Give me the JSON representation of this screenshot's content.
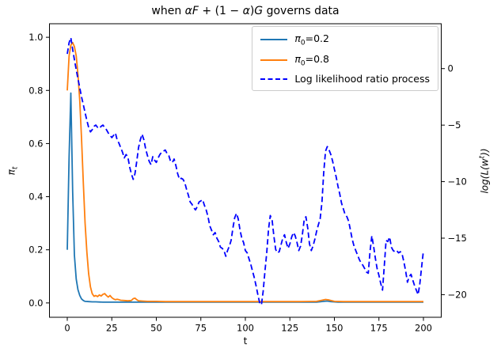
{
  "title_parts": [
    {
      "t": "when ",
      "i": 0
    },
    {
      "t": "αF",
      "i": 1
    },
    {
      "t": " + (1 − ",
      "i": 0
    },
    {
      "t": "α",
      "i": 1
    },
    {
      "t": ")",
      "i": 0
    },
    {
      "t": "G",
      "i": 1
    },
    {
      "t": " governs data",
      "i": 0
    }
  ],
  "axes": {
    "xlabel": "t",
    "ylabel_left": {
      "base": "π",
      "sub": "t"
    },
    "ylabel_right": {
      "pre": "log(L(w",
      "sup": "t",
      "post": "))"
    },
    "x_ticks": [
      "0",
      "25",
      "50",
      "75",
      "100",
      "125",
      "150",
      "175",
      "200"
    ],
    "y_ticks_left": [
      "0.0",
      "0.2",
      "0.4",
      "0.6",
      "0.8",
      "1.0"
    ],
    "y_ticks_right": [
      "0",
      "−5",
      "−10",
      "−15",
      "−20"
    ]
  },
  "legend": {
    "items": [
      {
        "math": "π",
        "sub": "0",
        "rest": "=0.2",
        "color": "#1f77b4",
        "dashed": false
      },
      {
        "math": "π",
        "sub": "0",
        "rest": "=0.8",
        "color": "#ff7f0e",
        "dashed": false
      },
      {
        "math": "",
        "sub": "",
        "rest": "Log likelihood ratio process",
        "color": "#0000ff",
        "dashed": true
      }
    ]
  },
  "chart_data": {
    "type": "line",
    "title": "when αF + (1 − α)G governs data",
    "xlabel": "t",
    "ylabel_left": "π_t",
    "ylabel_right": "log(L(w^t))",
    "xlim": [
      -10,
      210
    ],
    "ylim_left": [
      -0.054,
      1.051
    ],
    "ylim_right": [
      -22.0,
      3.97
    ],
    "x_tick_values": [
      0,
      25,
      50,
      75,
      100,
      125,
      150,
      175,
      200
    ],
    "y_tick_values_left": [
      0.0,
      0.2,
      0.4,
      0.6,
      0.8,
      1.0
    ],
    "y_tick_values_right": [
      0,
      -5,
      -10,
      -15,
      -20
    ],
    "grid": false,
    "legend_position": "upper right",
    "series": [
      {
        "id": "pi02",
        "name": "π0=0.2",
        "axis": "left",
        "color": "#1f77b4",
        "style": "solid",
        "points": [
          [
            0,
            0.2
          ],
          [
            1,
            0.55
          ],
          [
            2,
            0.79
          ],
          [
            3,
            0.42
          ],
          [
            4,
            0.18
          ],
          [
            5,
            0.09
          ],
          [
            6,
            0.05
          ],
          [
            7,
            0.028
          ],
          [
            8,
            0.015
          ],
          [
            9,
            0.009
          ],
          [
            10,
            0.006
          ],
          [
            12,
            0.005
          ],
          [
            14,
            0.004
          ],
          [
            16,
            0.004
          ],
          [
            20,
            0.003
          ],
          [
            25,
            0.003
          ],
          [
            30,
            0.003
          ],
          [
            40,
            0.003
          ],
          [
            50,
            0.003
          ],
          [
            60,
            0.003
          ],
          [
            80,
            0.003
          ],
          [
            100,
            0.003
          ],
          [
            120,
            0.003
          ],
          [
            140,
            0.003
          ],
          [
            144,
            0.006
          ],
          [
            146,
            0.007
          ],
          [
            148,
            0.005
          ],
          [
            152,
            0.003
          ],
          [
            160,
            0.003
          ],
          [
            180,
            0.003
          ],
          [
            200,
            0.003
          ]
        ]
      },
      {
        "id": "pi08",
        "name": "π0=0.8",
        "axis": "left",
        "color": "#ff7f0e",
        "style": "solid",
        "points": [
          [
            0,
            0.8
          ],
          [
            1,
            0.93
          ],
          [
            2,
            0.97
          ],
          [
            3,
            0.98
          ],
          [
            4,
            0.965
          ],
          [
            5,
            0.93
          ],
          [
            6,
            0.86
          ],
          [
            7,
            0.76
          ],
          [
            8,
            0.62
          ],
          [
            9,
            0.45
          ],
          [
            10,
            0.3
          ],
          [
            11,
            0.19
          ],
          [
            12,
            0.11
          ],
          [
            13,
            0.06
          ],
          [
            14,
            0.035
          ],
          [
            15,
            0.025
          ],
          [
            16,
            0.028
          ],
          [
            17,
            0.024
          ],
          [
            18,
            0.03
          ],
          [
            19,
            0.026
          ],
          [
            20,
            0.032
          ],
          [
            21,
            0.035
          ],
          [
            22,
            0.028
          ],
          [
            23,
            0.022
          ],
          [
            24,
            0.028
          ],
          [
            25,
            0.02
          ],
          [
            26,
            0.015
          ],
          [
            27,
            0.012
          ],
          [
            28,
            0.014
          ],
          [
            29,
            0.012
          ],
          [
            30,
            0.01
          ],
          [
            32,
            0.009
          ],
          [
            34,
            0.008
          ],
          [
            36,
            0.009
          ],
          [
            37,
            0.016
          ],
          [
            38,
            0.018
          ],
          [
            39,
            0.012
          ],
          [
            40,
            0.008
          ],
          [
            42,
            0.007
          ],
          [
            45,
            0.006
          ],
          [
            50,
            0.006
          ],
          [
            55,
            0.005
          ],
          [
            60,
            0.005
          ],
          [
            70,
            0.005
          ],
          [
            80,
            0.005
          ],
          [
            90,
            0.005
          ],
          [
            100,
            0.005
          ],
          [
            110,
            0.005
          ],
          [
            120,
            0.005
          ],
          [
            130,
            0.005
          ],
          [
            140,
            0.006
          ],
          [
            143,
            0.01
          ],
          [
            145,
            0.013
          ],
          [
            147,
            0.011
          ],
          [
            150,
            0.006
          ],
          [
            155,
            0.005
          ],
          [
            160,
            0.005
          ],
          [
            170,
            0.005
          ],
          [
            180,
            0.005
          ],
          [
            190,
            0.005
          ],
          [
            200,
            0.005
          ]
        ]
      },
      {
        "id": "llr",
        "name": "Log likelihood ratio process",
        "axis": "right",
        "color": "#0000ff",
        "style": "dashed",
        "points": [
          [
            0,
            1.3
          ],
          [
            1,
            2.3
          ],
          [
            2,
            2.74
          ],
          [
            3,
            1.7
          ],
          [
            4,
            0.8
          ],
          [
            5,
            -0.1
          ],
          [
            6,
            -0.9
          ],
          [
            7,
            -1.7
          ],
          [
            8,
            -2.5
          ],
          [
            9,
            -3.2
          ],
          [
            10,
            -3.9
          ],
          [
            11,
            -4.6
          ],
          [
            12,
            -5.2
          ],
          [
            13,
            -5.6
          ],
          [
            14,
            -5.4
          ],
          [
            15,
            -5.1
          ],
          [
            16,
            -5.0
          ],
          [
            17,
            -5.2
          ],
          [
            18,
            -5.3
          ],
          [
            19,
            -5.1
          ],
          [
            20,
            -5.0
          ],
          [
            21,
            -5.2
          ],
          [
            22,
            -5.4
          ],
          [
            23,
            -5.7
          ],
          [
            24,
            -5.9
          ],
          [
            25,
            -6.1
          ],
          [
            26,
            -5.9
          ],
          [
            27,
            -5.7
          ],
          [
            28,
            -6.3
          ],
          [
            29,
            -6.6
          ],
          [
            30,
            -7.0
          ],
          [
            31,
            -7.4
          ],
          [
            32,
            -7.9
          ],
          [
            33,
            -7.6
          ],
          [
            34,
            -7.8
          ],
          [
            35,
            -8.7
          ],
          [
            36,
            -9.3
          ],
          [
            37,
            -9.8
          ],
          [
            38,
            -9.3
          ],
          [
            39,
            -8.2
          ],
          [
            40,
            -7.0
          ],
          [
            41,
            -6.3
          ],
          [
            42,
            -5.8
          ],
          [
            43,
            -6.3
          ],
          [
            44,
            -7.1
          ],
          [
            45,
            -7.7
          ],
          [
            46,
            -8.2
          ],
          [
            47,
            -8.5
          ],
          [
            48,
            -7.8
          ],
          [
            49,
            -8.1
          ],
          [
            50,
            -8.3
          ],
          [
            51,
            -7.9
          ],
          [
            52,
            -7.6
          ],
          [
            53,
            -7.4
          ],
          [
            54,
            -7.3
          ],
          [
            55,
            -7.2
          ],
          [
            56,
            -7.5
          ],
          [
            57,
            -7.7
          ],
          [
            58,
            -8.2
          ],
          [
            59,
            -8.3
          ],
          [
            60,
            -8.0
          ],
          [
            61,
            -8.6
          ],
          [
            62,
            -9.3
          ],
          [
            63,
            -9.8
          ],
          [
            64,
            -9.7
          ],
          [
            65,
            -9.8
          ],
          [
            66,
            -10.1
          ],
          [
            67,
            -10.7
          ],
          [
            68,
            -11.2
          ],
          [
            69,
            -11.8
          ],
          [
            70,
            -12.0
          ],
          [
            71,
            -12.3
          ],
          [
            72,
            -12.5
          ],
          [
            73,
            -12.2
          ],
          [
            74,
            -11.8
          ],
          [
            75,
            -11.7
          ],
          [
            76,
            -11.6
          ],
          [
            77,
            -12.1
          ],
          [
            78,
            -12.5
          ],
          [
            79,
            -13.1
          ],
          [
            80,
            -13.9
          ],
          [
            81,
            -14.3
          ],
          [
            82,
            -14.7
          ],
          [
            83,
            -14.5
          ],
          [
            84,
            -15.0
          ],
          [
            85,
            -15.3
          ],
          [
            86,
            -15.8
          ],
          [
            87,
            -15.9
          ],
          [
            88,
            -16.1
          ],
          [
            89,
            -16.6
          ],
          [
            90,
            -16.1
          ],
          [
            91,
            -15.7
          ],
          [
            92,
            -15.2
          ],
          [
            93,
            -14.1
          ],
          [
            94,
            -13.2
          ],
          [
            95,
            -12.8
          ],
          [
            96,
            -13.3
          ],
          [
            97,
            -14.3
          ],
          [
            98,
            -15.0
          ],
          [
            99,
            -15.4
          ],
          [
            100,
            -16.1
          ],
          [
            101,
            -16.3
          ],
          [
            102,
            -16.8
          ],
          [
            103,
            -17.3
          ],
          [
            104,
            -17.9
          ],
          [
            105,
            -18.5
          ],
          [
            106,
            -19.2
          ],
          [
            107,
            -20.0
          ],
          [
            108,
            -20.7
          ],
          [
            109,
            -20.9
          ],
          [
            110,
            -19.7
          ],
          [
            111,
            -17.9
          ],
          [
            112,
            -16.3
          ],
          [
            113,
            -14.2
          ],
          [
            114,
            -13.0
          ],
          [
            115,
            -13.4
          ],
          [
            116,
            -14.8
          ],
          [
            117,
            -16.0
          ],
          [
            118,
            -16.3
          ],
          [
            119,
            -16.2
          ],
          [
            120,
            -15.6
          ],
          [
            121,
            -15.0
          ],
          [
            122,
            -14.7
          ],
          [
            123,
            -15.4
          ],
          [
            124,
            -15.9
          ],
          [
            125,
            -15.5
          ],
          [
            126,
            -14.9
          ],
          [
            127,
            -14.5
          ],
          [
            128,
            -14.8
          ],
          [
            129,
            -15.4
          ],
          [
            130,
            -16.1
          ],
          [
            131,
            -15.7
          ],
          [
            132,
            -14.7
          ],
          [
            133,
            -13.4
          ],
          [
            134,
            -13.1
          ],
          [
            135,
            -14.1
          ],
          [
            136,
            -15.5
          ],
          [
            137,
            -16.1
          ],
          [
            138,
            -15.7
          ],
          [
            139,
            -15.1
          ],
          [
            140,
            -14.4
          ],
          [
            141,
            -13.8
          ],
          [
            142,
            -13.3
          ],
          [
            143,
            -11.8
          ],
          [
            144,
            -9.2
          ],
          [
            145,
            -7.3
          ],
          [
            146,
            -6.9
          ],
          [
            147,
            -7.2
          ],
          [
            148,
            -7.6
          ],
          [
            149,
            -8.2
          ],
          [
            150,
            -8.9
          ],
          [
            151,
            -9.6
          ],
          [
            152,
            -10.4
          ],
          [
            153,
            -11.1
          ],
          [
            154,
            -11.9
          ],
          [
            155,
            -12.4
          ],
          [
            156,
            -12.9
          ],
          [
            157,
            -13.1
          ],
          [
            158,
            -13.5
          ],
          [
            159,
            -14.3
          ],
          [
            160,
            -15.1
          ],
          [
            161,
            -15.7
          ],
          [
            162,
            -16.1
          ],
          [
            163,
            -16.5
          ],
          [
            164,
            -16.9
          ],
          [
            165,
            -17.2
          ],
          [
            166,
            -17.4
          ],
          [
            167,
            -17.7
          ],
          [
            168,
            -18.0
          ],
          [
            169,
            -18.1
          ],
          [
            170,
            -16.2
          ],
          [
            171,
            -14.8
          ],
          [
            172,
            -15.7
          ],
          [
            173,
            -16.8
          ],
          [
            174,
            -17.7
          ],
          [
            175,
            -18.3
          ],
          [
            176,
            -19.0
          ],
          [
            177,
            -19.6
          ],
          [
            178,
            -17.5
          ],
          [
            179,
            -15.2
          ],
          [
            180,
            -15.3
          ],
          [
            181,
            -14.9
          ],
          [
            182,
            -15.8
          ],
          [
            183,
            -16.1
          ],
          [
            184,
            -16.2
          ],
          [
            185,
            -16.1
          ],
          [
            186,
            -16.3
          ],
          [
            187,
            -16.2
          ],
          [
            188,
            -16.4
          ],
          [
            189,
            -17.1
          ],
          [
            190,
            -17.9
          ],
          [
            191,
            -18.9
          ],
          [
            192,
            -18.4
          ],
          [
            193,
            -18.2
          ],
          [
            194,
            -18.7
          ],
          [
            195,
            -19.2
          ],
          [
            196,
            -19.6
          ],
          [
            197,
            -20.0
          ],
          [
            198,
            -19.0
          ],
          [
            199,
            -17.5
          ],
          [
            200,
            -16.1
          ]
        ]
      }
    ]
  }
}
